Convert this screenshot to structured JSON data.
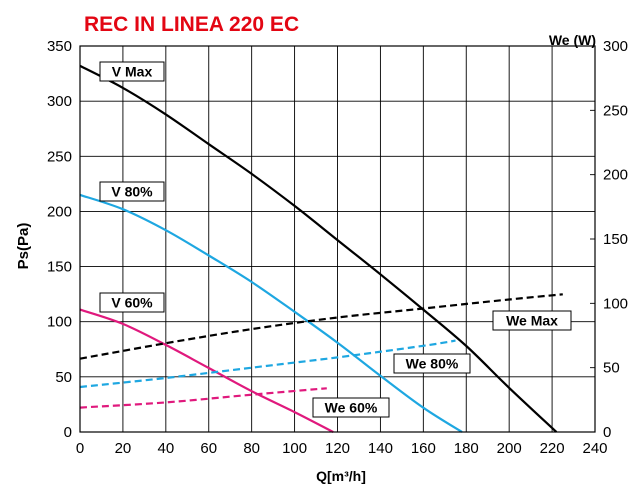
{
  "chart_data": {
    "type": "line",
    "title": "REC IN LINEA 220 EC",
    "xlabel": "Q[m³/h]",
    "ylabel": "Ps(Pa)",
    "y2label": "We (W)",
    "xlim": [
      0,
      240
    ],
    "ylim": [
      0,
      350
    ],
    "y2lim": [
      0,
      300
    ],
    "x_ticks": [
      0,
      20,
      40,
      60,
      80,
      100,
      120,
      140,
      160,
      180,
      200,
      220,
      240
    ],
    "y_ticks": [
      0,
      50,
      100,
      150,
      200,
      250,
      300,
      350
    ],
    "y2_ticks": [
      0,
      50,
      100,
      150,
      200,
      250,
      300
    ],
    "grid": true,
    "series": [
      {
        "name": "V Max",
        "axis": "left",
        "style": "solid",
        "color": "#000000",
        "x": [
          0,
          20,
          40,
          60,
          80,
          100,
          120,
          140,
          160,
          180,
          200,
          222
        ],
        "y": [
          332,
          312,
          288,
          261,
          234,
          205,
          174,
          143,
          111,
          78,
          40,
          0
        ]
      },
      {
        "name": "V 80%",
        "axis": "left",
        "style": "solid",
        "color": "#1ea7e1",
        "x": [
          0,
          20,
          40,
          60,
          80,
          100,
          120,
          140,
          160,
          178
        ],
        "y": [
          215,
          202,
          183,
          160,
          136,
          109,
          81,
          51,
          22,
          0
        ]
      },
      {
        "name": "V 60%",
        "axis": "left",
        "style": "solid",
        "color": "#e0197d",
        "x": [
          0,
          20,
          40,
          60,
          80,
          100,
          118
        ],
        "y": [
          111,
          98,
          79,
          58,
          37,
          18,
          0
        ]
      },
      {
        "name": "We Max",
        "axis": "right",
        "style": "dashed",
        "color": "#000000",
        "x": [
          0,
          40,
          80,
          120,
          160,
          200,
          225
        ],
        "y": [
          57,
          69,
          80,
          89,
          96,
          103,
          107
        ]
      },
      {
        "name": "We 80%",
        "axis": "right",
        "style": "dashed",
        "color": "#1ea7e1",
        "x": [
          0,
          40,
          80,
          120,
          160,
          175
        ],
        "y": [
          35,
          42,
          50,
          58,
          67,
          71
        ]
      },
      {
        "name": "We 60%",
        "axis": "right",
        "style": "dashed",
        "color": "#e0197d",
        "x": [
          0,
          40,
          80,
          115
        ],
        "y": [
          19,
          23,
          29,
          34
        ]
      }
    ]
  }
}
